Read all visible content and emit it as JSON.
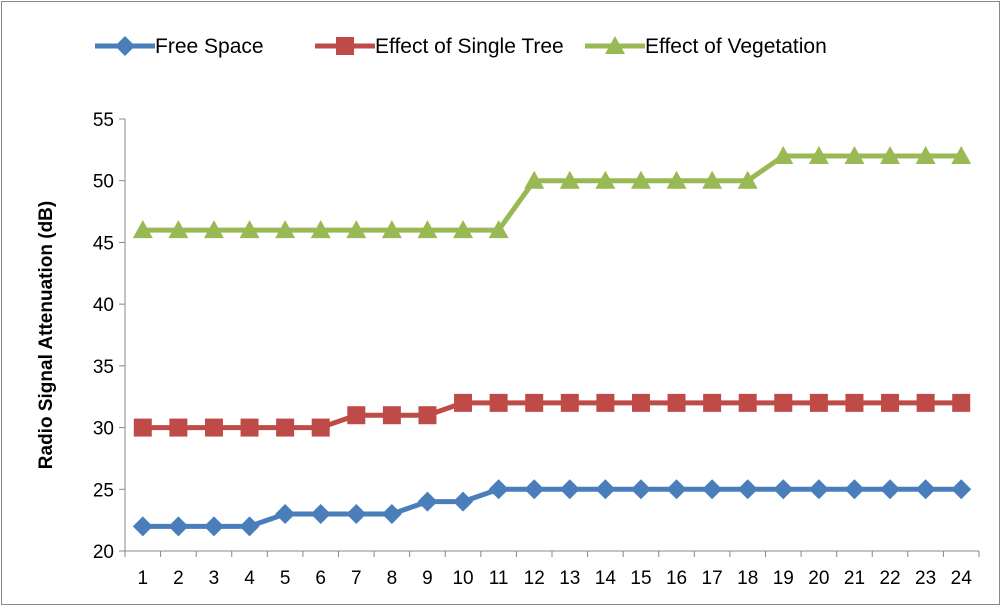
{
  "chart_data": {
    "type": "line",
    "title": "",
    "xlabel": "",
    "ylabel": "Radio Signal Attenuation (dB)",
    "ylim": [
      20,
      55
    ],
    "yticks": [
      20,
      25,
      30,
      35,
      40,
      45,
      50,
      55
    ],
    "grid": false,
    "legend_placement": "top",
    "categories": [
      "1",
      "2",
      "3",
      "4",
      "5",
      "6",
      "7",
      "8",
      "9",
      "10",
      "11",
      "12",
      "13",
      "14",
      "15",
      "16",
      "17",
      "18",
      "19",
      "20",
      "21",
      "22",
      "23",
      "24"
    ],
    "series": [
      {
        "name": "Free Space",
        "color": "#4a7ebb",
        "marker": "diamond",
        "values": [
          22,
          22,
          22,
          22,
          23,
          23,
          23,
          23,
          24,
          24,
          25,
          25,
          25,
          25,
          25,
          25,
          25,
          25,
          25,
          25,
          25,
          25,
          25,
          25
        ]
      },
      {
        "name": "Effect of Single Tree",
        "color": "#be4b48",
        "marker": "square",
        "values": [
          30,
          30,
          30,
          30,
          30,
          30,
          31,
          31,
          31,
          32,
          32,
          32,
          32,
          32,
          32,
          32,
          32,
          32,
          32,
          32,
          32,
          32,
          32,
          32
        ]
      },
      {
        "name": "Effect of Vegetation",
        "color": "#98b954",
        "marker": "triangle",
        "values": [
          46,
          46,
          46,
          46,
          46,
          46,
          46,
          46,
          46,
          46,
          46,
          50,
          50,
          50,
          50,
          50,
          50,
          50,
          52,
          52,
          52,
          52,
          52,
          52
        ]
      }
    ]
  }
}
